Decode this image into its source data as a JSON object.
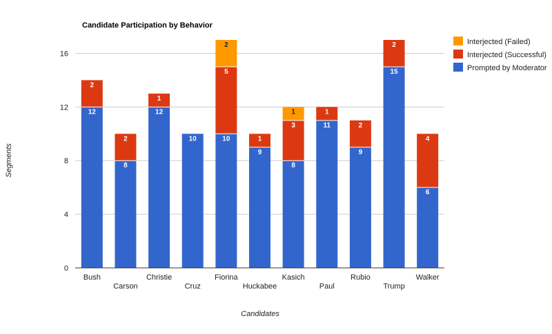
{
  "chart_data": {
    "type": "bar",
    "stacked": true,
    "title": "Candidate Participation by Behavior",
    "xlabel": "Candidates",
    "ylabel": "Segments",
    "ylim": [
      0,
      17
    ],
    "yticks": [
      0,
      4,
      8,
      12,
      16
    ],
    "grid": true,
    "legend_position": "right",
    "categories": [
      "Bush",
      "Carson",
      "Christie",
      "Cruz",
      "Fiorina",
      "Huckabee",
      "Kasich",
      "Paul",
      "Rubio",
      "Trump",
      "Walker"
    ],
    "series": [
      {
        "name": "Prompted by Moderator",
        "color": "#3366cc",
        "label_color": "#ffffff",
        "values": [
          12,
          8,
          12,
          10,
          10,
          9,
          8,
          11,
          9,
          15,
          6
        ]
      },
      {
        "name": "Interjected (Successful)",
        "color": "#dc3912",
        "label_color": "#ffffff",
        "values": [
          2,
          2,
          1,
          0,
          5,
          1,
          3,
          1,
          2,
          2,
          4
        ]
      },
      {
        "name": "Interjected (Failed)",
        "color": "#ff9900",
        "label_color": "#222222",
        "values": [
          0,
          0,
          0,
          0,
          2,
          0,
          1,
          0,
          0,
          0,
          0
        ]
      }
    ],
    "legend_order": [
      "Interjected (Failed)",
      "Interjected (Successful)",
      "Prompted by Moderator"
    ]
  }
}
